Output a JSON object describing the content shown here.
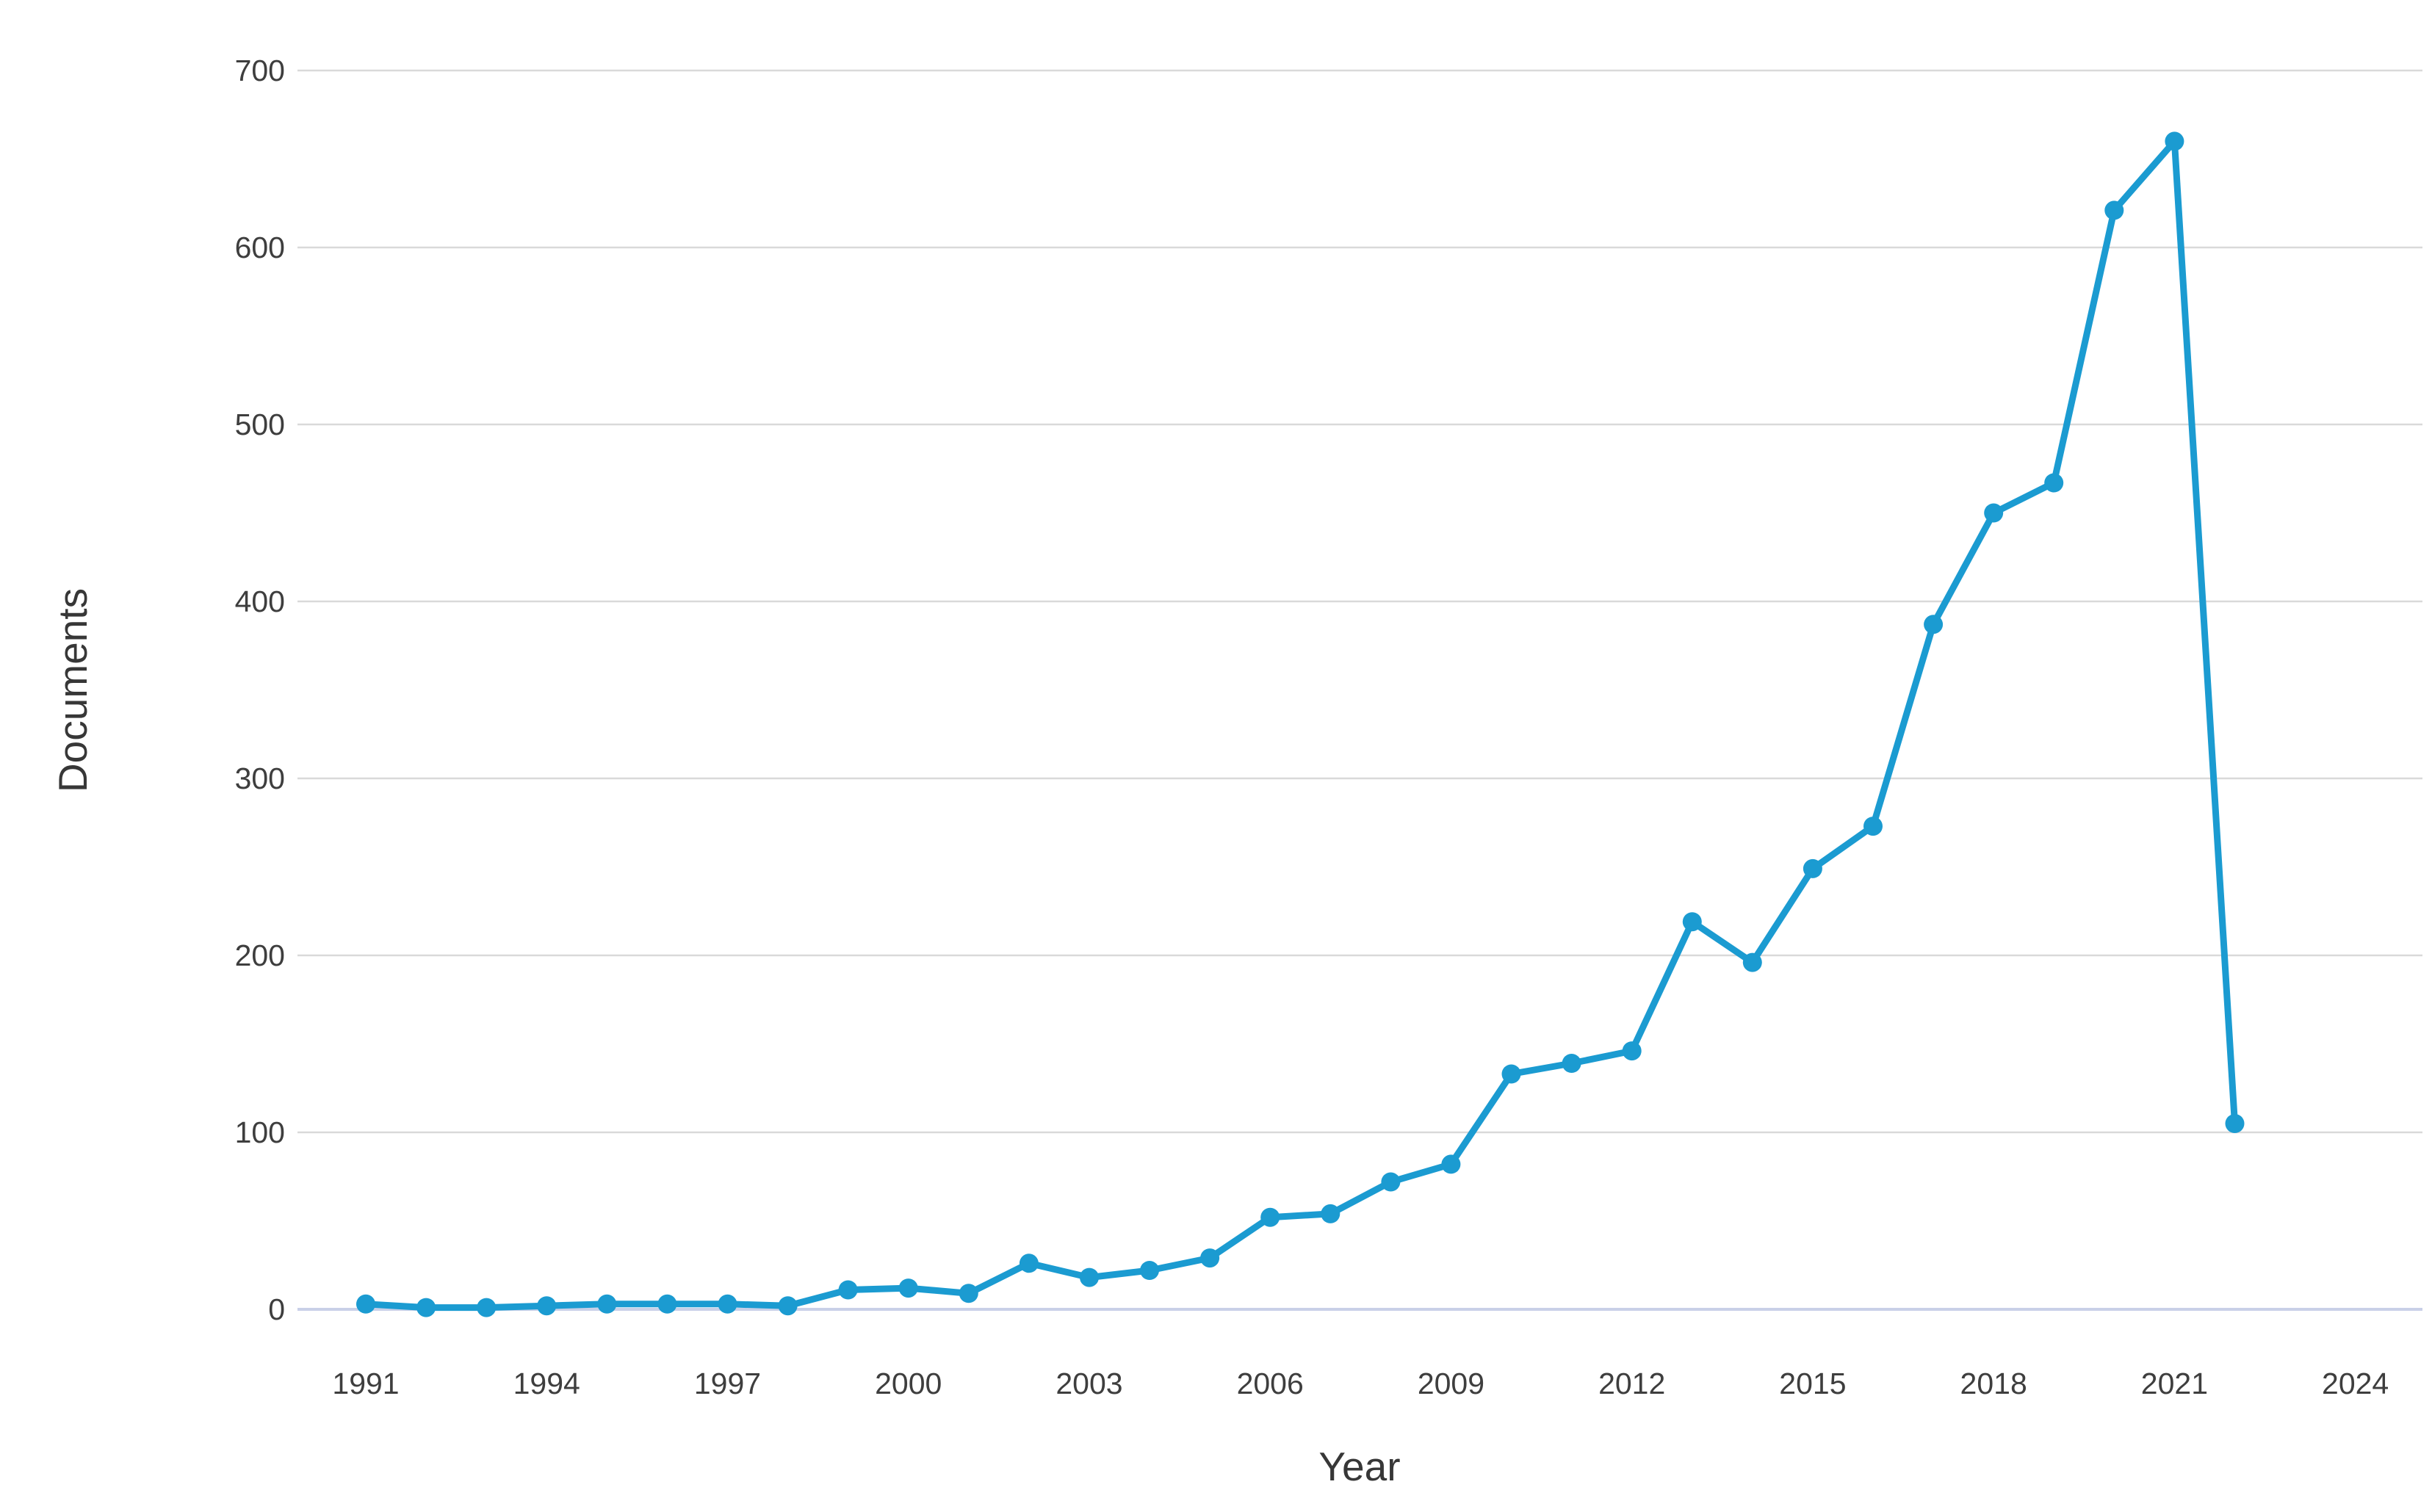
{
  "chart_data": {
    "type": "line",
    "title": "",
    "xlabel": "Year",
    "ylabel": "Documents",
    "series": [
      {
        "name": "Documents",
        "x": [
          1991,
          1992,
          1993,
          1994,
          1995,
          1996,
          1997,
          1998,
          1999,
          2000,
          2001,
          2002,
          2003,
          2004,
          2005,
          2006,
          2007,
          2008,
          2009,
          2010,
          2011,
          2012,
          2013,
          2014,
          2015,
          2016,
          2017,
          2018,
          2019,
          2020,
          2021,
          2022
        ],
        "values": [
          3,
          1,
          1,
          2,
          3,
          3,
          3,
          2,
          11,
          12,
          9,
          26,
          18,
          22,
          29,
          52,
          54,
          72,
          82,
          133,
          139,
          146,
          219,
          196,
          249,
          273,
          387,
          450,
          467,
          621,
          660,
          105
        ]
      }
    ],
    "x_ticks": [
      1991,
      1994,
      1997,
      2000,
      2003,
      2006,
      2009,
      2012,
      2015,
      2018,
      2021,
      2024
    ],
    "y_ticks": [
      0,
      100,
      200,
      300,
      400,
      500,
      600,
      700
    ],
    "xlim": [
      1989.9,
      2025.3
    ],
    "ylim": [
      0,
      700
    ],
    "grid": "horizontal-only",
    "legend_position": "none",
    "colors": {
      "line": "#1b9bd1",
      "marker": "#1b9bd1",
      "gridline": "#d9d9d9",
      "zero_baseline": "#c9d0e8",
      "tick_text": "#3e3e3e",
      "axis_title_text": "#373737",
      "background": "#ffffff"
    }
  }
}
